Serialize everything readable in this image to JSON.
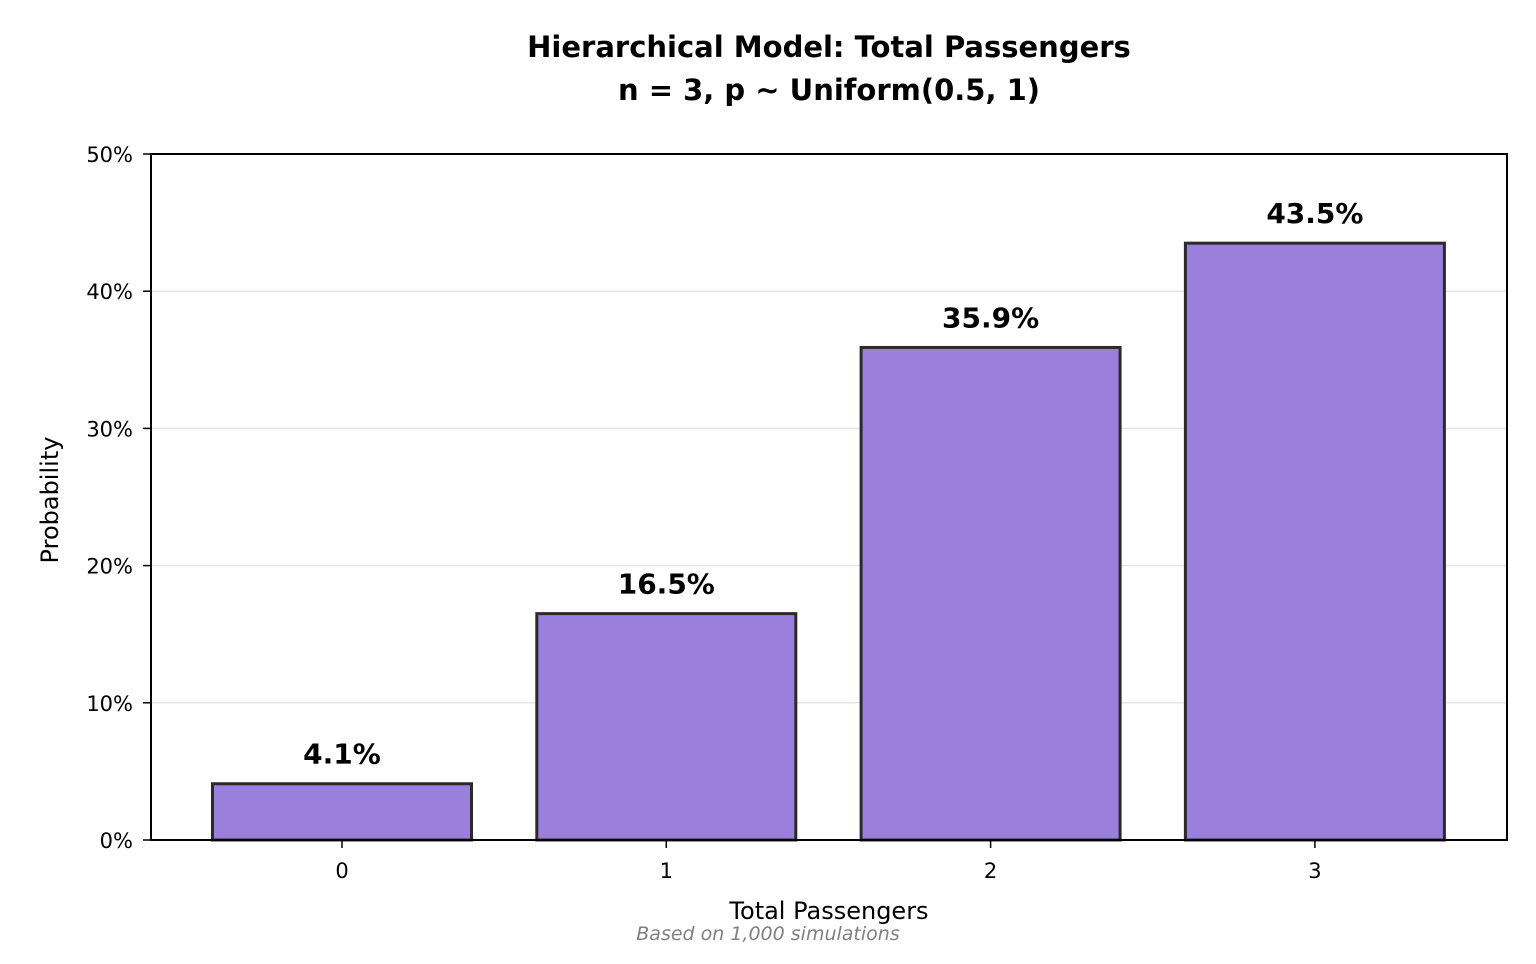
{
  "chart_data": {
    "type": "bar",
    "title_line1": "Hierarchical Model: Total Passengers",
    "title_line2": "n = 3, p ~ Uniform(0.5, 1)",
    "xlabel": "Total Passengers",
    "ylabel": "Probability",
    "footnote": "Based on 1,000 simulations",
    "categories": [
      "0",
      "1",
      "2",
      "3"
    ],
    "values": [
      4.1,
      16.5,
      35.9,
      43.5
    ],
    "value_labels": [
      "4.1%",
      "16.5%",
      "35.9%",
      "43.5%"
    ],
    "ylim": [
      0,
      50
    ],
    "yticks": [
      0,
      10,
      20,
      30,
      40,
      50
    ],
    "ytick_labels": [
      "0%",
      "10%",
      "20%",
      "30%",
      "40%",
      "50%"
    ],
    "grid": "horizontal",
    "colors": {
      "bar_fill": "#9a7fdc",
      "bar_edge": "#2a2a2a",
      "grid": "#e6e6e6",
      "footnote": "#808080",
      "text": "#000000"
    }
  }
}
